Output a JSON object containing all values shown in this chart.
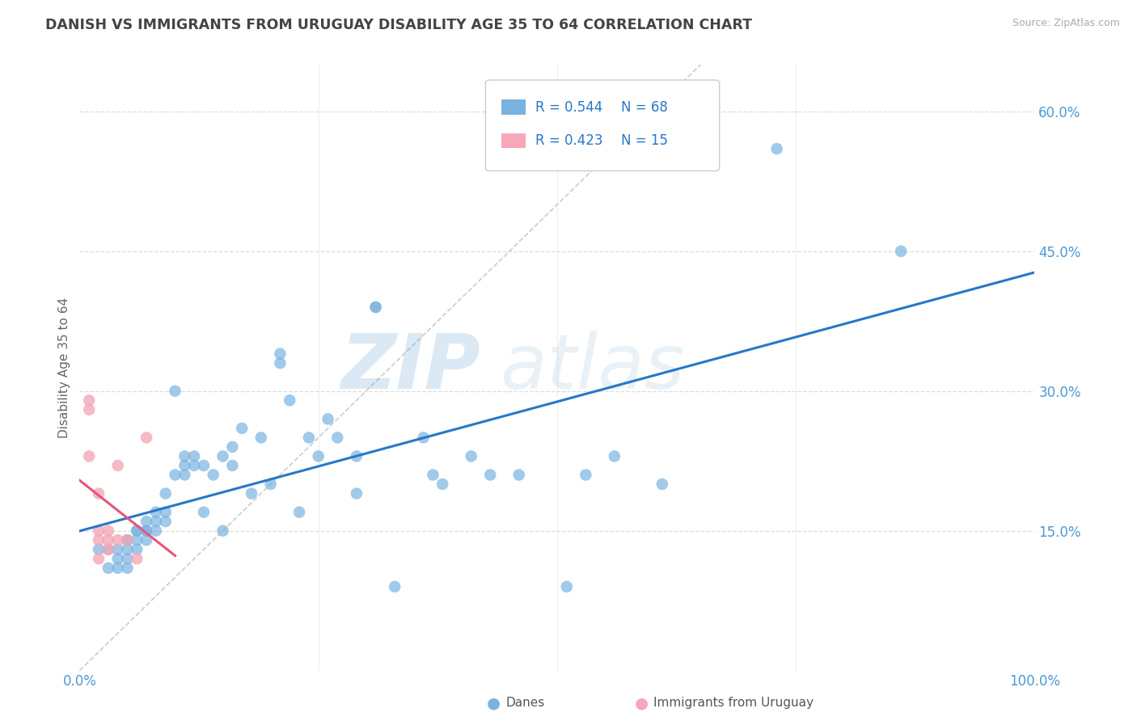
{
  "title": "DANISH VS IMMIGRANTS FROM URUGUAY DISABILITY AGE 35 TO 64 CORRELATION CHART",
  "source": "Source: ZipAtlas.com",
  "ylabel": "Disability Age 35 to 64",
  "xmin": 0.0,
  "xmax": 1.0,
  "ymin": 0.0,
  "ymax": 0.65,
  "yticks": [
    0.15,
    0.3,
    0.45,
    0.6
  ],
  "ytick_labels": [
    "15.0%",
    "30.0%",
    "45.0%",
    "60.0%"
  ],
  "xtick_labels_left": "0.0%",
  "xtick_labels_right": "100.0%",
  "danes_color": "#7ab3e0",
  "uruguay_color": "#f4a8b8",
  "danes_line_color": "#2678c8",
  "uruguay_line_color": "#e8547a",
  "danes_R": 0.544,
  "danes_N": 68,
  "uruguay_R": 0.423,
  "uruguay_N": 15,
  "danes_x": [
    0.02,
    0.03,
    0.03,
    0.04,
    0.04,
    0.04,
    0.05,
    0.05,
    0.05,
    0.05,
    0.05,
    0.06,
    0.06,
    0.06,
    0.06,
    0.07,
    0.07,
    0.07,
    0.07,
    0.08,
    0.08,
    0.08,
    0.09,
    0.09,
    0.09,
    0.1,
    0.1,
    0.11,
    0.11,
    0.11,
    0.12,
    0.12,
    0.13,
    0.13,
    0.14,
    0.15,
    0.15,
    0.16,
    0.16,
    0.17,
    0.18,
    0.19,
    0.2,
    0.21,
    0.21,
    0.22,
    0.23,
    0.24,
    0.25,
    0.26,
    0.27,
    0.29,
    0.29,
    0.31,
    0.31,
    0.33,
    0.36,
    0.37,
    0.38,
    0.41,
    0.43,
    0.46,
    0.51,
    0.53,
    0.56,
    0.61,
    0.73,
    0.86
  ],
  "danes_y": [
    0.13,
    0.13,
    0.11,
    0.13,
    0.12,
    0.11,
    0.14,
    0.14,
    0.13,
    0.12,
    0.11,
    0.15,
    0.15,
    0.14,
    0.13,
    0.16,
    0.15,
    0.15,
    0.14,
    0.16,
    0.17,
    0.15,
    0.16,
    0.17,
    0.19,
    0.21,
    0.3,
    0.22,
    0.21,
    0.23,
    0.22,
    0.23,
    0.17,
    0.22,
    0.21,
    0.15,
    0.23,
    0.22,
    0.24,
    0.26,
    0.19,
    0.25,
    0.2,
    0.33,
    0.34,
    0.29,
    0.17,
    0.25,
    0.23,
    0.27,
    0.25,
    0.19,
    0.23,
    0.39,
    0.39,
    0.09,
    0.25,
    0.21,
    0.2,
    0.23,
    0.21,
    0.21,
    0.09,
    0.21,
    0.23,
    0.2,
    0.56,
    0.45
  ],
  "uruguay_x": [
    0.01,
    0.01,
    0.01,
    0.02,
    0.02,
    0.02,
    0.02,
    0.03,
    0.03,
    0.03,
    0.04,
    0.04,
    0.05,
    0.06,
    0.07
  ],
  "uruguay_y": [
    0.29,
    0.28,
    0.23,
    0.19,
    0.15,
    0.14,
    0.12,
    0.15,
    0.14,
    0.13,
    0.22,
    0.14,
    0.14,
    0.12,
    0.25
  ],
  "watermark_text": "ZIP",
  "watermark_text2": "atlas",
  "background_color": "#ffffff",
  "grid_color": "#dddddd",
  "grid_style": "--",
  "title_color": "#444444",
  "title_fontsize": 12.5,
  "axis_label_color": "#666666",
  "tick_label_color": "#4a9ad4",
  "legend_label_color": "#2678c8",
  "ref_line_color": "#cccccc",
  "ref_line_style": "--"
}
